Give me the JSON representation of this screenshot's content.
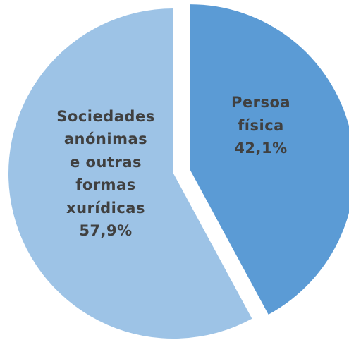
{
  "chart_data": {
    "type": "pie",
    "categories": [
      "Persoa\nfísica",
      "Sociedades\nanónimas\ne outras\nformas\nxurídicas"
    ],
    "values": [
      42.1,
      57.9
    ],
    "value_labels": [
      "42,1%",
      "57,9%"
    ],
    "colors": [
      "#5b9bd5",
      "#9dc3e6"
    ]
  }
}
